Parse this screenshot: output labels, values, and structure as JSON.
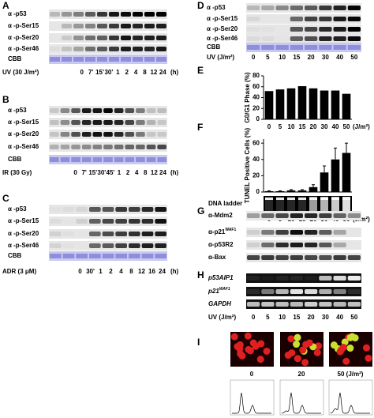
{
  "panel_a": {
    "label": "A",
    "rows": [
      "α -p53",
      "α -p-Ser15",
      "α -p-Ser20",
      "α -p-Ser46",
      "CBB"
    ],
    "treatment": "UV (30 J/m²)",
    "lanes": [
      "0",
      "7'",
      "15'",
      "30'",
      "1",
      "2",
      "4",
      "8",
      "12",
      "24"
    ],
    "unit": "(h)"
  },
  "panel_b": {
    "label": "B",
    "rows": [
      "α -p53",
      "α -p-Ser15",
      "α -p-Ser20",
      "α -p-Ser46",
      "CBB"
    ],
    "treatment": "IR (30 Gy)",
    "lanes": [
      "0",
      "7'",
      "15'",
      "30'",
      "45'",
      "1",
      "2",
      "4",
      "8",
      "12",
      "24"
    ],
    "unit": "(h)"
  },
  "panel_c": {
    "label": "C",
    "rows": [
      "α -p53",
      "α -p-Ser15",
      "α -p-Ser20",
      "α -p-Ser46",
      "CBB"
    ],
    "treatment": "ADR (3 μM)",
    "lanes": [
      "0",
      "30'",
      "1",
      "2",
      "4",
      "8",
      "12",
      "16",
      "24"
    ],
    "unit": "(h)"
  },
  "panel_d": {
    "label": "D",
    "rows": [
      "α -p53",
      "α -p-Ser15",
      "α -p-Ser20",
      "α -p-Ser46",
      "CBB"
    ],
    "treatment": "UV (J/m²)",
    "lanes": [
      "0",
      "5",
      "10",
      "15",
      "20",
      "30",
      "40",
      "50"
    ]
  },
  "panel_e": {
    "label": "E",
    "type": "bar",
    "y_label": "G0/G1 Phase (%)",
    "categories": [
      "0",
      "5",
      "10",
      "15",
      "20",
      "30",
      "40",
      "50"
    ],
    "x_unit": "(J/m²)",
    "values": [
      52,
      55,
      57,
      61,
      57,
      53,
      53,
      47
    ],
    "ylim": [
      0,
      80
    ],
    "yticks": [
      0,
      20,
      40,
      60,
      80
    ],
    "color": "#000000"
  },
  "panel_f": {
    "label": "F",
    "type": "bar",
    "y_label": "TUNEL Positive Cells (%)",
    "categories": [
      "0",
      "5",
      "10",
      "15",
      "20",
      "30",
      "40",
      "50"
    ],
    "x_unit": "(J/m²)",
    "values": [
      1,
      1,
      2,
      2,
      6,
      24,
      40,
      48
    ],
    "errors": [
      0.5,
      0.5,
      1,
      1,
      3,
      8,
      14,
      12
    ],
    "ylim": [
      0,
      65
    ],
    "yticks": [
      0,
      20,
      40,
      60
    ],
    "color": "#000000",
    "gel_label": "DNA ladder"
  },
  "panel_g": {
    "label": "G",
    "rows": [
      "α-Mdm2",
      {
        "text": "α-p21",
        "sup": "WAF1"
      },
      "α-p53R2",
      "α-Bax"
    ]
  },
  "panel_h": {
    "label": "H",
    "rows": [
      "p53AIP1",
      {
        "text": "p21",
        "sup": "WAF1"
      },
      "GAPDH"
    ],
    "treatment": "UV (J/m²)",
    "lanes": [
      "0",
      "5",
      "10",
      "15",
      "20",
      "30",
      "40",
      "50"
    ]
  },
  "panel_i": {
    "label": "I",
    "captions": [
      "0",
      "20",
      "50 (J/m²)"
    ]
  }
}
